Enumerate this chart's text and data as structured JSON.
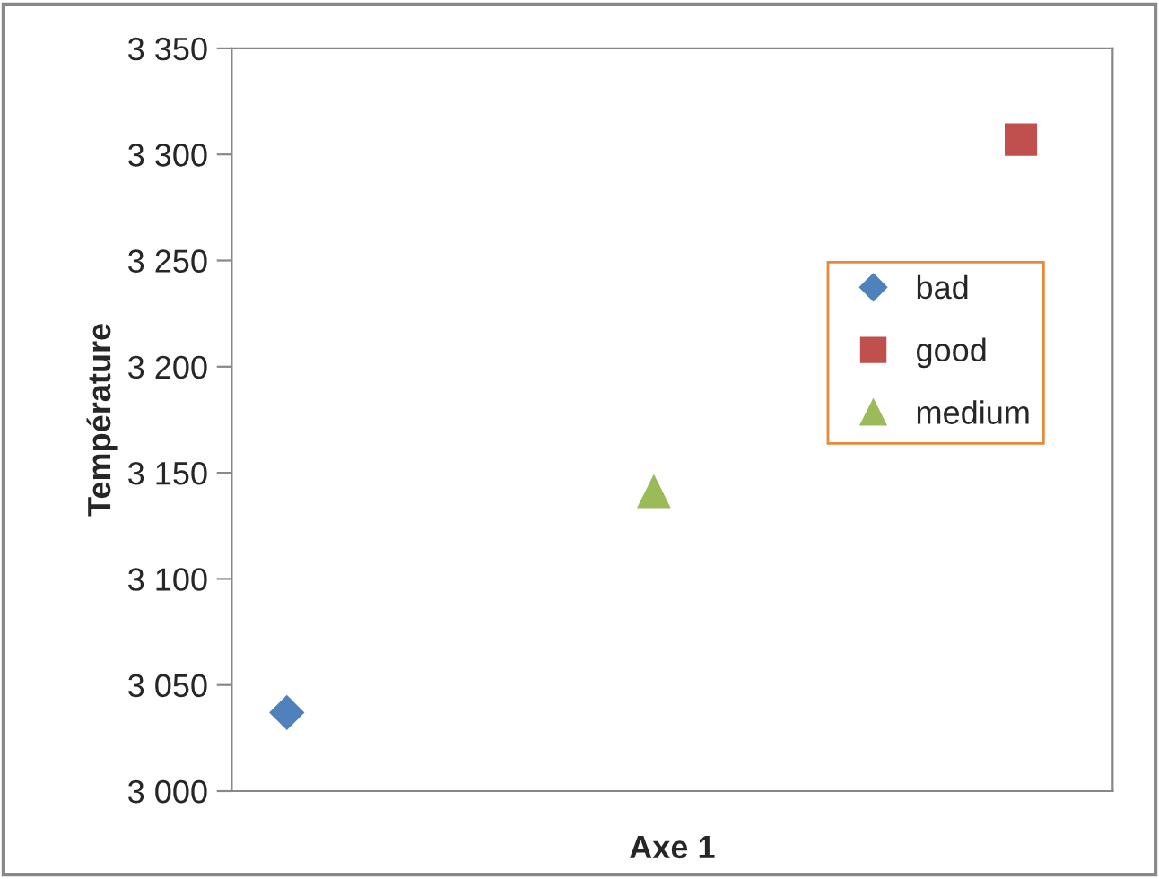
{
  "chart_data": {
    "type": "scatter",
    "xlabel": "Axe 1",
    "ylabel": "Température",
    "categories": [
      null,
      null,
      null
    ],
    "series": [
      {
        "name": "bad",
        "color": "#4f81bd",
        "marker": "diamond",
        "values": [
          3037,
          null,
          null
        ]
      },
      {
        "name": "good",
        "color": "#c0504d",
        "marker": "square",
        "values": [
          null,
          null,
          3307
        ]
      },
      {
        "name": "medium",
        "color": "#9bbb59",
        "marker": "triangle",
        "values": [
          null,
          3141,
          null
        ]
      }
    ],
    "ylim": [
      3000,
      3350
    ],
    "yticks": [
      {
        "value": 3000,
        "label": "3 000"
      },
      {
        "value": 3050,
        "label": "3 050"
      },
      {
        "value": 3100,
        "label": "3 100"
      },
      {
        "value": 3150,
        "label": "3 150"
      },
      {
        "value": 3200,
        "label": "3 200"
      },
      {
        "value": 3250,
        "label": "3 250"
      },
      {
        "value": 3300,
        "label": "3 300"
      },
      {
        "value": 3350,
        "label": "3 350"
      }
    ],
    "grid": false,
    "legend": "right"
  }
}
